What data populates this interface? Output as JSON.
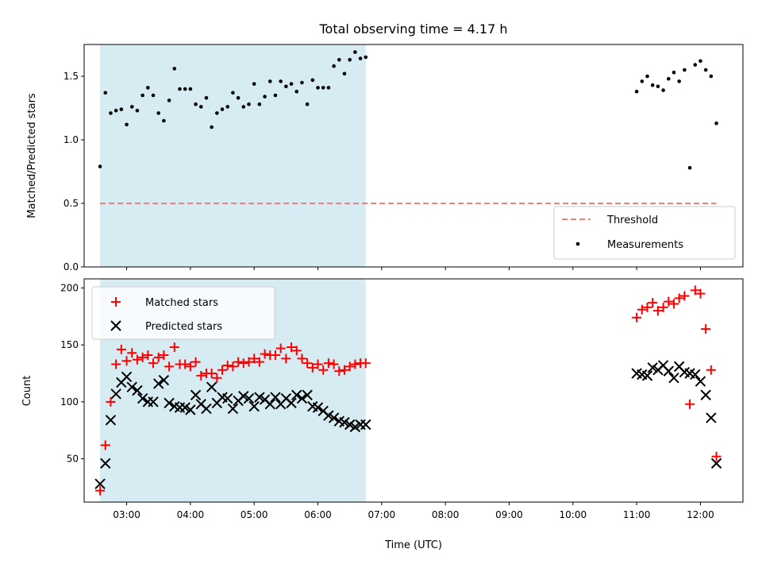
{
  "chart_data": [
    {
      "type": "scatter",
      "title": "Total observing time = 4.17 h",
      "ylabel": "Matched/Predicted stars",
      "ylim": [
        0,
        1.75
      ],
      "yticks": [
        0.0,
        0.5,
        1.0,
        1.5
      ],
      "xlim": [
        "02:20",
        "12:40"
      ],
      "shaded_span": [
        "02:35",
        "06:45"
      ],
      "legend_position": "lower-right",
      "series": [
        {
          "name": "Threshold",
          "kind": "dashed-line",
          "color": "#f08080",
          "x": [
            "02:35",
            "12:15"
          ],
          "y": [
            0.5,
            0.5
          ]
        },
        {
          "name": "Measurements",
          "kind": "dot",
          "color": "#000000",
          "points": [
            [
              "02:35",
              0.79
            ],
            [
              "02:40",
              1.37
            ],
            [
              "02:45",
              1.21
            ],
            [
              "02:50",
              1.23
            ],
            [
              "02:55",
              1.24
            ],
            [
              "03:00",
              1.12
            ],
            [
              "03:05",
              1.26
            ],
            [
              "03:10",
              1.23
            ],
            [
              "03:15",
              1.35
            ],
            [
              "03:20",
              1.41
            ],
            [
              "03:25",
              1.35
            ],
            [
              "03:30",
              1.21
            ],
            [
              "03:35",
              1.15
            ],
            [
              "03:40",
              1.31
            ],
            [
              "03:45",
              1.56
            ],
            [
              "03:50",
              1.4
            ],
            [
              "03:55",
              1.4
            ],
            [
              "04:00",
              1.4
            ],
            [
              "04:05",
              1.28
            ],
            [
              "04:10",
              1.26
            ],
            [
              "04:15",
              1.33
            ],
            [
              "04:20",
              1.1
            ],
            [
              "04:25",
              1.21
            ],
            [
              "04:30",
              1.24
            ],
            [
              "04:35",
              1.26
            ],
            [
              "04:40",
              1.37
            ],
            [
              "04:45",
              1.33
            ],
            [
              "04:50",
              1.26
            ],
            [
              "04:55",
              1.28
            ],
            [
              "05:00",
              1.44
            ],
            [
              "05:05",
              1.28
            ],
            [
              "05:10",
              1.34
            ],
            [
              "05:15",
              1.46
            ],
            [
              "05:20",
              1.35
            ],
            [
              "05:25",
              1.46
            ],
            [
              "05:30",
              1.42
            ],
            [
              "05:35",
              1.44
            ],
            [
              "05:40",
              1.38
            ],
            [
              "05:45",
              1.45
            ],
            [
              "05:50",
              1.28
            ],
            [
              "05:55",
              1.47
            ],
            [
              "06:00",
              1.41
            ],
            [
              "06:05",
              1.41
            ],
            [
              "06:10",
              1.41
            ],
            [
              "06:15",
              1.58
            ],
            [
              "06:20",
              1.63
            ],
            [
              "06:25",
              1.52
            ],
            [
              "06:30",
              1.63
            ],
            [
              "06:35",
              1.69
            ],
            [
              "06:40",
              1.64
            ],
            [
              "06:45",
              1.65
            ],
            [
              "11:00",
              1.38
            ],
            [
              "11:05",
              1.46
            ],
            [
              "11:10",
              1.5
            ],
            [
              "11:15",
              1.43
            ],
            [
              "11:20",
              1.42
            ],
            [
              "11:25",
              1.39
            ],
            [
              "11:30",
              1.48
            ],
            [
              "11:35",
              1.53
            ],
            [
              "11:40",
              1.46
            ],
            [
              "11:45",
              1.55
            ],
            [
              "11:50",
              0.78
            ],
            [
              "11:55",
              1.59
            ],
            [
              "12:00",
              1.62
            ],
            [
              "12:05",
              1.55
            ],
            [
              "12:10",
              1.5
            ],
            [
              "12:15",
              1.13
            ]
          ]
        }
      ]
    },
    {
      "type": "scatter",
      "xlabel": "Time (UTC)",
      "ylabel": "Count",
      "ylim": [
        12,
        208
      ],
      "yticks": [
        50,
        100,
        150,
        200
      ],
      "xlim": [
        "02:20",
        "12:40"
      ],
      "xticks": [
        "03:00",
        "04:00",
        "05:00",
        "06:00",
        "07:00",
        "08:00",
        "09:00",
        "10:00",
        "11:00",
        "12:00"
      ],
      "shaded_span": [
        "02:35",
        "06:45"
      ],
      "legend_position": "upper-left",
      "series": [
        {
          "name": "Matched stars",
          "marker": "plus",
          "color": "#ff0000",
          "points": [
            [
              "02:35",
              22
            ],
            [
              "02:40",
              62
            ],
            [
              "02:45",
              100
            ],
            [
              "02:50",
              133
            ],
            [
              "02:55",
              146
            ],
            [
              "03:00",
              136
            ],
            [
              "03:05",
              143
            ],
            [
              "03:10",
              137
            ],
            [
              "03:15",
              139
            ],
            [
              "03:20",
              141
            ],
            [
              "03:25",
              134
            ],
            [
              "03:30",
              139
            ],
            [
              "03:35",
              141
            ],
            [
              "03:40",
              131
            ],
            [
              "03:45",
              148
            ],
            [
              "03:50",
              133
            ],
            [
              "03:55",
              133
            ],
            [
              "04:00",
              131
            ],
            [
              "04:05",
              135
            ],
            [
              "04:10",
              123
            ],
            [
              "04:15",
              125
            ],
            [
              "04:20",
              125
            ],
            [
              "04:25",
              121
            ],
            [
              "04:30",
              128
            ],
            [
              "04:35",
              132
            ],
            [
              "04:40",
              131
            ],
            [
              "04:45",
              135
            ],
            [
              "04:50",
              134
            ],
            [
              "04:55",
              135
            ],
            [
              "05:00",
              138
            ],
            [
              "05:05",
              135
            ],
            [
              "05:10",
              142
            ],
            [
              "05:15",
              141
            ],
            [
              "05:20",
              141
            ],
            [
              "05:25",
              147
            ],
            [
              "05:30",
              138
            ],
            [
              "05:35",
              148
            ],
            [
              "05:40",
              145
            ],
            [
              "05:45",
              138
            ],
            [
              "05:50",
              134
            ],
            [
              "05:55",
              130
            ],
            [
              "06:00",
              133
            ],
            [
              "06:05",
              128
            ],
            [
              "06:10",
              134
            ],
            [
              "06:15",
              133
            ],
            [
              "06:20",
              127
            ],
            [
              "06:25",
              128
            ],
            [
              "06:30",
              131
            ],
            [
              "06:35",
              133
            ],
            [
              "06:40",
              134
            ],
            [
              "06:45",
              134
            ],
            [
              "11:00",
              174
            ],
            [
              "11:05",
              181
            ],
            [
              "11:10",
              183
            ],
            [
              "11:15",
              187
            ],
            [
              "11:20",
              180
            ],
            [
              "11:25",
              183
            ],
            [
              "11:30",
              188
            ],
            [
              "11:35",
              186
            ],
            [
              "11:40",
              191
            ],
            [
              "11:45",
              193
            ],
            [
              "11:50",
              98
            ],
            [
              "11:55",
              198
            ],
            [
              "12:00",
              195
            ],
            [
              "12:05",
              164
            ],
            [
              "12:10",
              128
            ],
            [
              "12:15",
              52
            ]
          ]
        },
        {
          "name": "Predicted stars",
          "marker": "x",
          "color": "#000000",
          "points": [
            [
              "02:35",
              28
            ],
            [
              "02:40",
              46
            ],
            [
              "02:45",
              84
            ],
            [
              "02:50",
              107
            ],
            [
              "02:55",
              117
            ],
            [
              "03:00",
              122
            ],
            [
              "03:05",
              113
            ],
            [
              "03:10",
              110
            ],
            [
              "03:15",
              103
            ],
            [
              "03:20",
              100
            ],
            [
              "03:25",
              100
            ],
            [
              "03:30",
              116
            ],
            [
              "03:35",
              119
            ],
            [
              "03:40",
              99
            ],
            [
              "03:45",
              96
            ],
            [
              "03:50",
              95
            ],
            [
              "03:55",
              95
            ],
            [
              "04:00",
              93
            ],
            [
              "04:05",
              106
            ],
            [
              "04:10",
              98
            ],
            [
              "04:15",
              94
            ],
            [
              "04:20",
              113
            ],
            [
              "04:25",
              99
            ],
            [
              "04:30",
              104
            ],
            [
              "04:35",
              103
            ],
            [
              "04:40",
              94
            ],
            [
              "04:45",
              101
            ],
            [
              "04:50",
              105
            ],
            [
              "04:55",
              103
            ],
            [
              "05:00",
              96
            ],
            [
              "05:05",
              104
            ],
            [
              "05:10",
              102
            ],
            [
              "05:15",
              98
            ],
            [
              "05:20",
              104
            ],
            [
              "05:25",
              98
            ],
            [
              "05:30",
              103
            ],
            [
              "05:35",
              99
            ],
            [
              "05:40",
              106
            ],
            [
              "05:45",
              103
            ],
            [
              "05:50",
              106
            ],
            [
              "05:55",
              96
            ],
            [
              "06:00",
              95
            ],
            [
              "06:05",
              92
            ],
            [
              "06:10",
              88
            ],
            [
              "06:15",
              86
            ],
            [
              "06:20",
              83
            ],
            [
              "06:25",
              82
            ],
            [
              "06:30",
              80
            ],
            [
              "06:35",
              78
            ],
            [
              "06:40",
              80
            ],
            [
              "06:45",
              80
            ],
            [
              "11:00",
              125
            ],
            [
              "11:05",
              124
            ],
            [
              "11:10",
              123
            ],
            [
              "11:15",
              130
            ],
            [
              "11:20",
              128
            ],
            [
              "11:25",
              132
            ],
            [
              "11:30",
              127
            ],
            [
              "11:35",
              121
            ],
            [
              "11:40",
              131
            ],
            [
              "11:45",
              126
            ],
            [
              "11:50",
              125
            ],
            [
              "11:55",
              124
            ],
            [
              "12:00",
              118
            ],
            [
              "12:05",
              106
            ],
            [
              "12:10",
              86
            ],
            [
              "12:15",
              46
            ]
          ]
        }
      ]
    }
  ]
}
